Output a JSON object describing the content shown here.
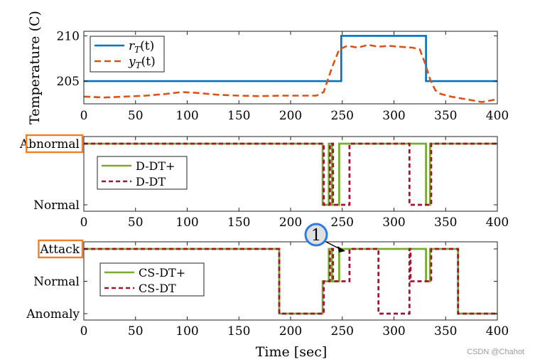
{
  "chart_data": [
    {
      "type": "line",
      "ylabel": "Temperature (C)",
      "xlim": [
        0,
        400
      ],
      "ylim": [
        202.5,
        210.5
      ],
      "yticks": [
        "205",
        "210"
      ],
      "xticks": [
        "0",
        "50",
        "100",
        "150",
        "200",
        "250",
        "300",
        "350",
        "400"
      ],
      "legend_position": "top-left",
      "series": [
        {
          "name": "r_T(t)",
          "legend_base": "r",
          "legend_sub": "T",
          "legend_arg": "(t)",
          "color": "#0072bd",
          "style": "solid",
          "points": [
            [
              0,
              205
            ],
            [
              249,
              205
            ],
            [
              249,
              210
            ],
            [
              331,
              210
            ],
            [
              331,
              205
            ],
            [
              400,
              205
            ]
          ]
        },
        {
          "name": "y_T(t)",
          "legend_base": "y",
          "legend_sub": "T",
          "legend_arg": "(t)",
          "color": "#d95319",
          "style": "dashed",
          "points": [
            [
              0,
              203.3
            ],
            [
              20,
              203.2
            ],
            [
              40,
              203.3
            ],
            [
              60,
              203.4
            ],
            [
              80,
              203.6
            ],
            [
              95,
              203.8
            ],
            [
              110,
              203.7
            ],
            [
              130,
              203.5
            ],
            [
              150,
              203.4
            ],
            [
              170,
              203.35
            ],
            [
              190,
              203.4
            ],
            [
              210,
              203.4
            ],
            [
              225,
              203.4
            ],
            [
              232,
              203.8
            ],
            [
              240,
              206.5
            ],
            [
              247,
              208.5
            ],
            [
              255,
              208.9
            ],
            [
              265,
              208.7
            ],
            [
              275,
              209.0
            ],
            [
              285,
              208.8
            ],
            [
              295,
              208.9
            ],
            [
              305,
              208.8
            ],
            [
              318,
              208.7
            ],
            [
              325,
              208.5
            ],
            [
              330,
              207.0
            ],
            [
              335,
              205.2
            ],
            [
              340,
              204.0
            ],
            [
              345,
              203.6
            ],
            [
              355,
              203.3
            ],
            [
              365,
              203.1
            ],
            [
              375,
              202.9
            ],
            [
              385,
              202.7
            ],
            [
              395,
              202.9
            ],
            [
              400,
              203.0
            ]
          ]
        }
      ]
    },
    {
      "type": "line",
      "xlim": [
        0,
        400
      ],
      "levels": [
        "Normal",
        "Abnormal"
      ],
      "yticks": [
        "Normal",
        "Abnormal"
      ],
      "xticks": [
        "0",
        "50",
        "100",
        "150",
        "200",
        "250",
        "300",
        "350",
        "400"
      ],
      "legend_position": "middle-left",
      "highlight": "Abnormal",
      "series": [
        {
          "name": "D-DT+",
          "color": "#77ac30",
          "style": "solid",
          "points": [
            [
              0,
              1
            ],
            [
              231,
              1
            ],
            [
              231,
              0
            ],
            [
              237,
              0
            ],
            [
              237,
              1
            ],
            [
              240,
              1
            ],
            [
              240,
              0
            ],
            [
              247,
              0
            ],
            [
              247,
              1
            ],
            [
              331,
              1
            ],
            [
              331,
              0
            ],
            [
              335,
              0
            ],
            [
              335,
              1
            ],
            [
              400,
              1
            ]
          ]
        },
        {
          "name": "D-DT",
          "color": "#a2142f",
          "style": "dashed",
          "points": [
            [
              0,
              1
            ],
            [
              232,
              1
            ],
            [
              232,
              0
            ],
            [
              238,
              0
            ],
            [
              238,
              1
            ],
            [
              241,
              1
            ],
            [
              241,
              0
            ],
            [
              257,
              0
            ],
            [
              257,
              1
            ],
            [
              315,
              1
            ],
            [
              315,
              0
            ],
            [
              336,
              0
            ],
            [
              336,
              1
            ],
            [
              400,
              1
            ]
          ]
        }
      ]
    },
    {
      "type": "line",
      "xlim": [
        0,
        400
      ],
      "levels": [
        "Anomaly",
        "Normal",
        "Attack"
      ],
      "yticks": [
        "Anomaly",
        "Normal",
        "Attack"
      ],
      "xticks": [
        "0",
        "50",
        "100",
        "150",
        "200",
        "250",
        "300",
        "350",
        "400"
      ],
      "xlabel": "Time [sec]",
      "legend_position": "middle-left",
      "highlight": "Attack",
      "annotation": {
        "label": "1",
        "target_x": 253,
        "target_y": 2
      },
      "series": [
        {
          "name": "CS-DT+",
          "color": "#77ac30",
          "style": "solid",
          "points": [
            [
              0,
              2
            ],
            [
              189,
              2
            ],
            [
              189,
              0
            ],
            [
              231,
              0
            ],
            [
              231,
              1
            ],
            [
              237,
              1
            ],
            [
              237,
              2
            ],
            [
              240,
              2
            ],
            [
              240,
              1
            ],
            [
              247,
              1
            ],
            [
              247,
              2
            ],
            [
              331,
              2
            ],
            [
              331,
              1
            ],
            [
              335,
              1
            ],
            [
              335,
              2
            ],
            [
              362,
              2
            ],
            [
              362,
              0
            ],
            [
              400,
              0
            ]
          ]
        },
        {
          "name": "CS-DT",
          "color": "#a2142f",
          "style": "dashed",
          "points": [
            [
              0,
              2
            ],
            [
              189,
              2
            ],
            [
              189,
              0
            ],
            [
              232,
              0
            ],
            [
              232,
              1
            ],
            [
              238,
              1
            ],
            [
              238,
              2
            ],
            [
              241,
              2
            ],
            [
              241,
              1
            ],
            [
              257,
              1
            ],
            [
              257,
              2
            ],
            [
              285,
              2
            ],
            [
              285,
              0
            ],
            [
              315,
              0
            ],
            [
              315,
              2
            ],
            [
              316,
              2
            ],
            [
              316,
              1
            ],
            [
              336,
              1
            ],
            [
              336,
              2
            ],
            [
              362,
              2
            ],
            [
              362,
              0
            ],
            [
              400,
              0
            ]
          ]
        }
      ]
    }
  ],
  "watermark": "CSDN @Chahot"
}
